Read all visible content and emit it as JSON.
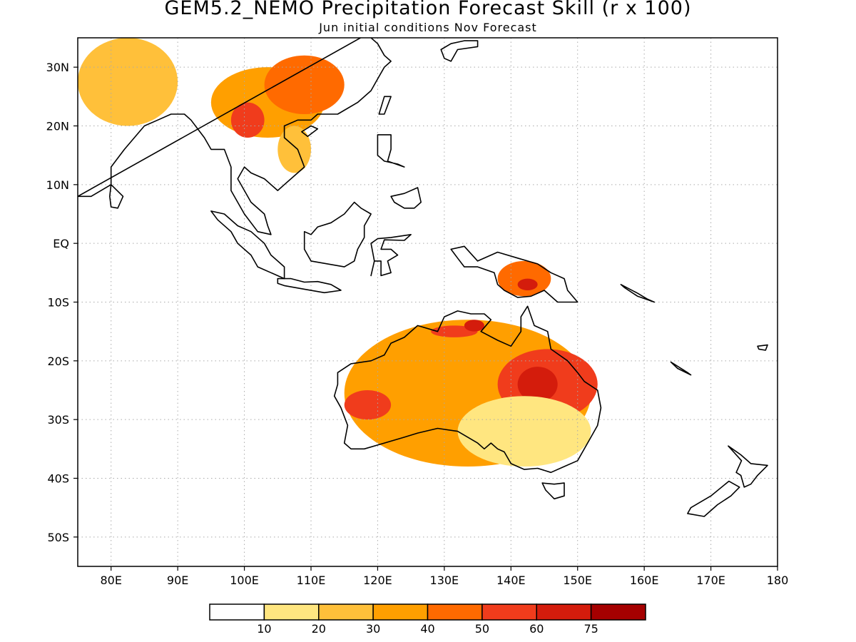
{
  "title": "GEM5.2_NEMO Precipitation Forecast Skill (r x 100)",
  "subtitle": "Jun initial conditions  Nov Forecast",
  "map": {
    "lon_range": [
      75,
      180
    ],
    "lat_range": [
      -55,
      35
    ],
    "grid": "dotted",
    "lon_ticks": [
      "80E",
      "90E",
      "100E",
      "110E",
      "120E",
      "130E",
      "140E",
      "150E",
      "160E",
      "170E",
      "180"
    ],
    "lat_ticks": [
      "30N",
      "20N",
      "10N",
      "EQ",
      "10S",
      "20S",
      "30S",
      "40S",
      "50S"
    ]
  },
  "colorbar": {
    "colors": [
      "#ffffff",
      "#ffe680",
      "#ffc03a",
      "#ff9f00",
      "#ff6a00",
      "#f03c1c",
      "#d41c0c",
      "#a50000"
    ],
    "labels": [
      "10",
      "20",
      "30",
      "40",
      "50",
      "60",
      "75"
    ]
  },
  "chart_data": {
    "type": "heatmap",
    "variable": "Precipitation forecast skill (r x 100)",
    "bins": [
      [
        0,
        10
      ],
      [
        10,
        20
      ],
      [
        20,
        30
      ],
      [
        30,
        40
      ],
      [
        40,
        50
      ],
      [
        50,
        60
      ],
      [
        60,
        75
      ],
      [
        75,
        100
      ]
    ],
    "regions": [
      {
        "lon": [
          75,
          90
        ],
        "lat": [
          20,
          35
        ],
        "level": 2
      },
      {
        "lon": [
          95,
          112
        ],
        "lat": [
          18,
          30
        ],
        "level": 3
      },
      {
        "lon": [
          98,
          103
        ],
        "lat": [
          18,
          24
        ],
        "level": 5
      },
      {
        "lon": [
          103,
          115
        ],
        "lat": [
          22,
          32
        ],
        "level": 4
      },
      {
        "lon": [
          105,
          110
        ],
        "lat": [
          12,
          20
        ],
        "level": 2
      },
      {
        "lon": [
          115,
          152
        ],
        "lat": [
          -38,
          -13
        ],
        "level": 3
      },
      {
        "lon": [
          115,
          122
        ],
        "lat": [
          -30,
          -25
        ],
        "level": 5
      },
      {
        "lon": [
          138,
          153
        ],
        "lat": [
          -30,
          -18
        ],
        "level": 5
      },
      {
        "lon": [
          141,
          147
        ],
        "lat": [
          -27,
          -21
        ],
        "level": 6
      },
      {
        "lon": [
          128,
          135
        ],
        "lat": [
          -16,
          -14
        ],
        "level": 5
      },
      {
        "lon": [
          133,
          136
        ],
        "lat": [
          -15,
          -13
        ],
        "level": 6
      },
      {
        "lon": [
          138,
          146
        ],
        "lat": [
          -9,
          -3
        ],
        "level": 4
      },
      {
        "lon": [
          141,
          144
        ],
        "lat": [
          -8,
          -6
        ],
        "level": 6
      },
      {
        "lon": [
          132,
          152
        ],
        "lat": [
          -38,
          -26
        ],
        "level": 1
      }
    ]
  }
}
